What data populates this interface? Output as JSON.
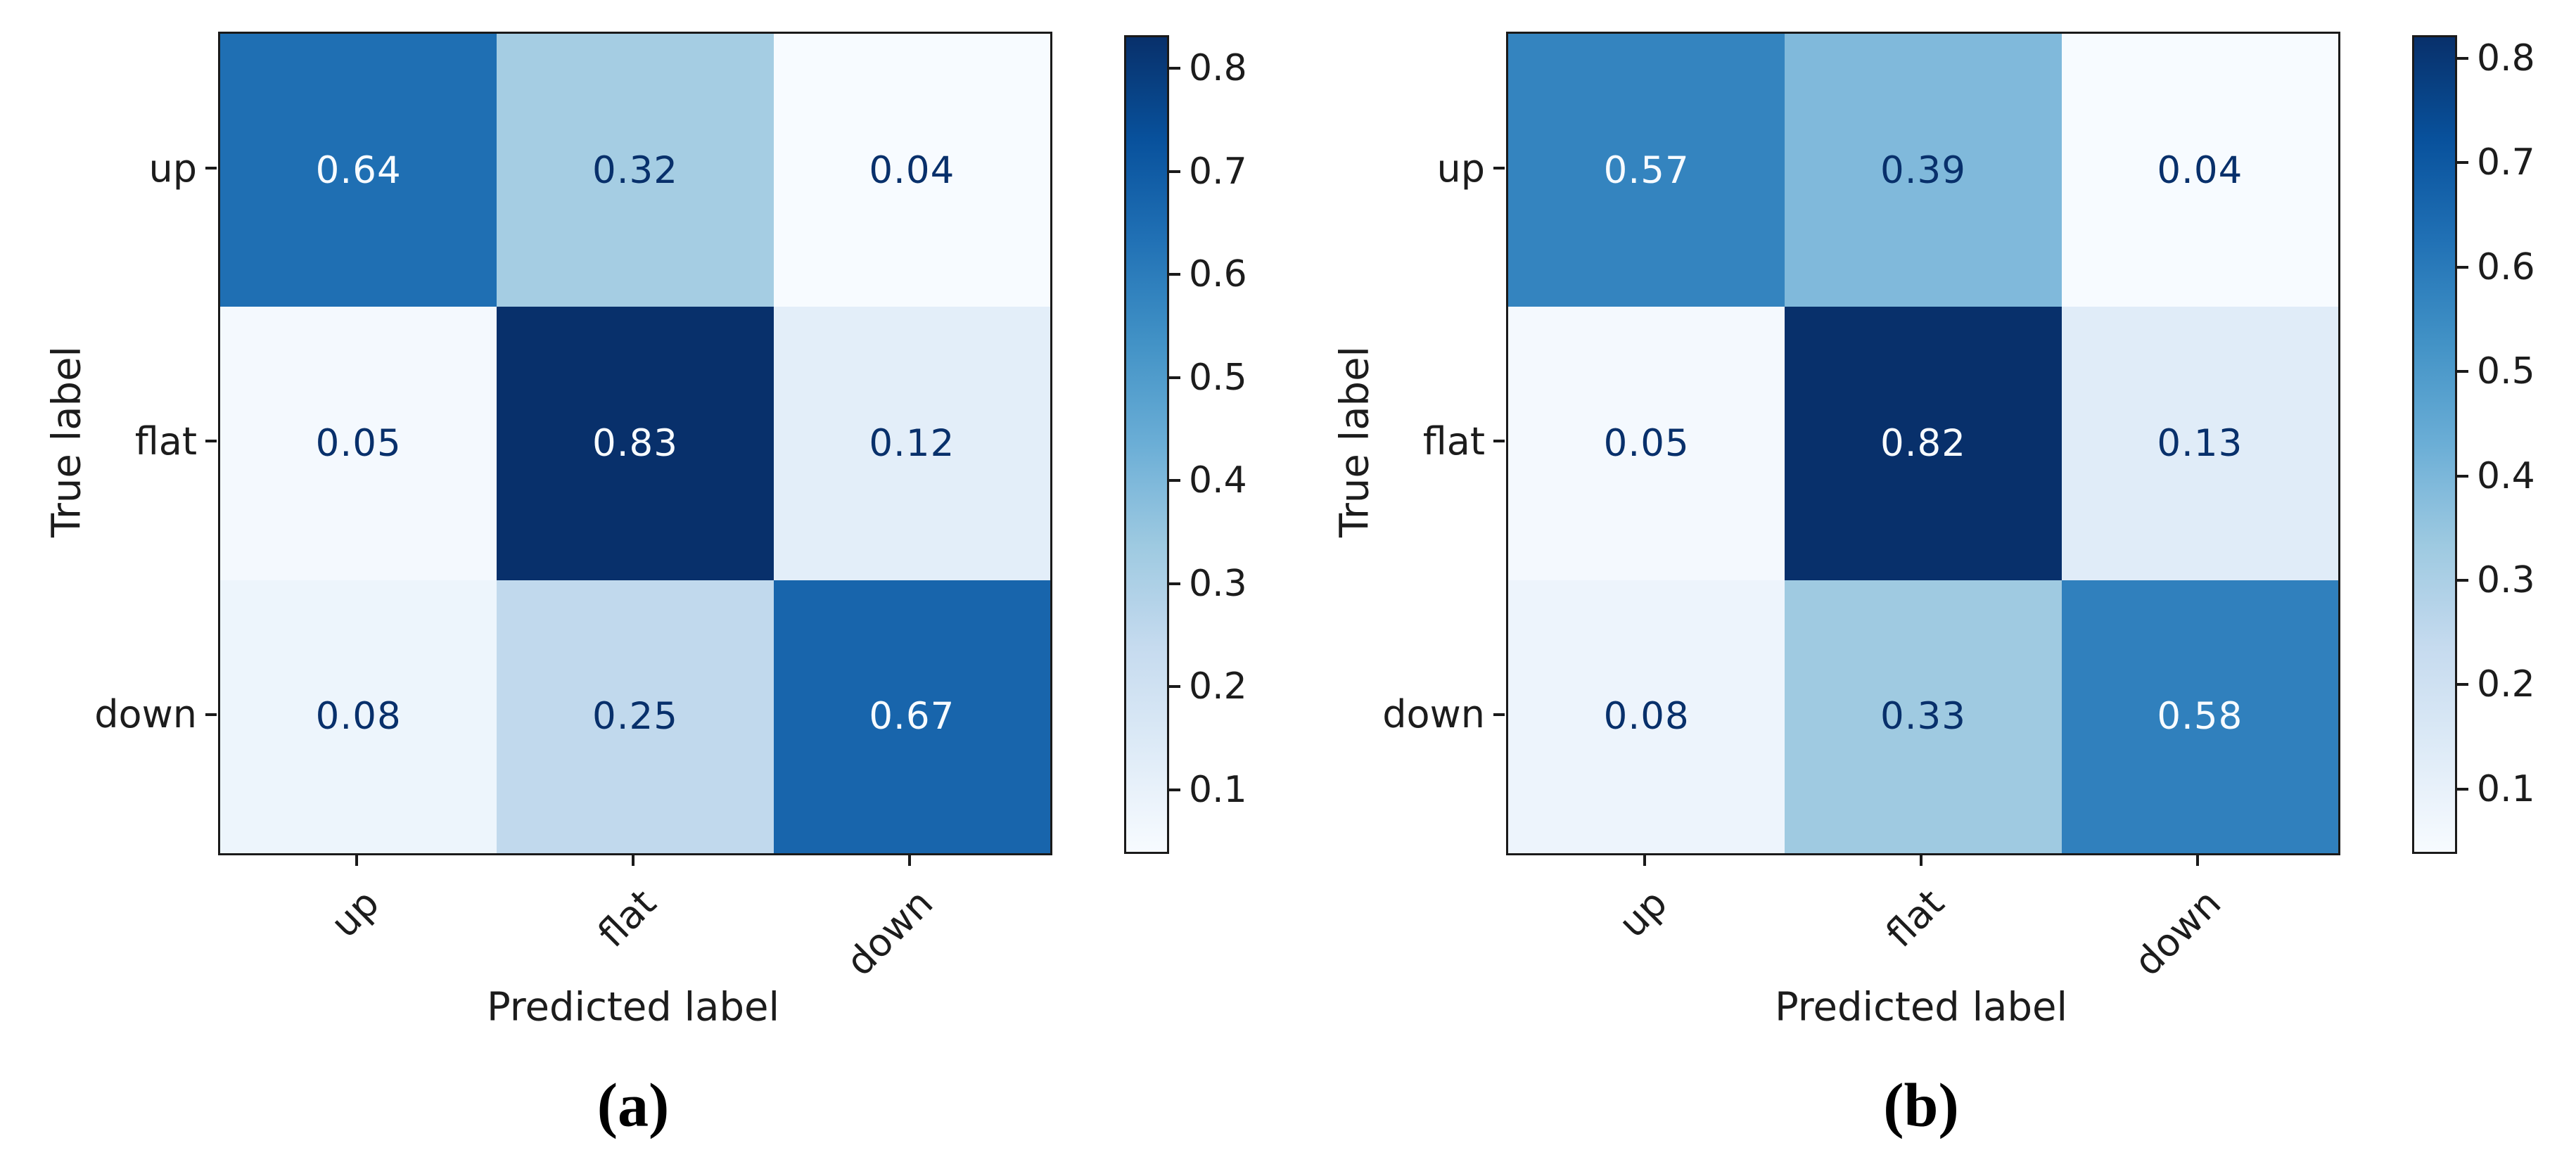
{
  "figure": {
    "background": "#ffffff",
    "description_visible_text_only": true
  },
  "chart_data": [
    {
      "type": "heatmap",
      "panel_caption": "(a)",
      "xlabel": "Predicted label",
      "ylabel": "True label",
      "x_categories": [
        "up",
        "flat",
        "down"
      ],
      "y_categories": [
        "up",
        "flat",
        "down"
      ],
      "rows": [
        [
          0.64,
          0.32,
          0.04
        ],
        [
          0.05,
          0.83,
          0.12
        ],
        [
          0.08,
          0.25,
          0.67
        ]
      ],
      "colormap": "Blues",
      "vmin": 0.04,
      "vmax": 0.83,
      "colorbar_ticks": [
        0.1,
        0.2,
        0.3,
        0.4,
        0.5,
        0.6,
        0.7,
        0.8
      ],
      "colorbar_position": "right",
      "x_tick_rotation_deg": 45,
      "grid": false
    },
    {
      "type": "heatmap",
      "panel_caption": "(b)",
      "xlabel": "Predicted label",
      "ylabel": "True label",
      "x_categories": [
        "up",
        "flat",
        "down"
      ],
      "y_categories": [
        "up",
        "flat",
        "down"
      ],
      "rows": [
        [
          0.57,
          0.39,
          0.04
        ],
        [
          0.05,
          0.82,
          0.13
        ],
        [
          0.08,
          0.33,
          0.58
        ]
      ],
      "colormap": "Blues",
      "vmin": 0.04,
      "vmax": 0.82,
      "colorbar_ticks": [
        0.1,
        0.2,
        0.3,
        0.4,
        0.5,
        0.6,
        0.7,
        0.8
      ],
      "colorbar_position": "right",
      "x_tick_rotation_deg": 45,
      "grid": false
    }
  ],
  "colors": {
    "axis_line": "#1a1a1a",
    "tick_label": "#1c1c1c",
    "colormap_min": "#f7fbff",
    "colormap_max": "#08306b"
  }
}
